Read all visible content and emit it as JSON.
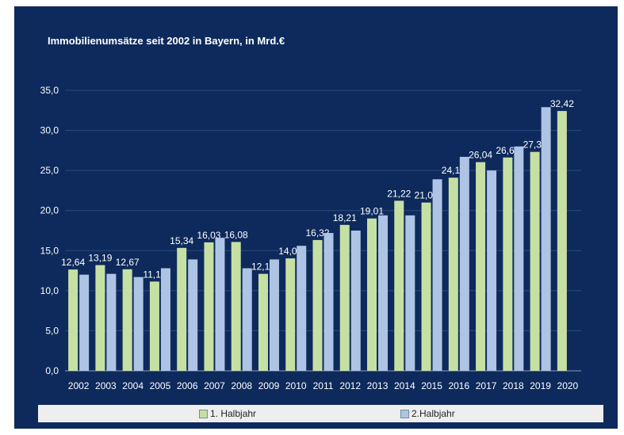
{
  "chart_data": {
    "type": "bar",
    "title": "Immobilienumsätze seit 2002 in Bayern, in Mrd.€",
    "categories": [
      "2002",
      "2003",
      "2004",
      "2005",
      "2006",
      "2007",
      "2008",
      "2009",
      "2010",
      "2011",
      "2012",
      "2013",
      "2014",
      "2015",
      "2016",
      "2017",
      "2018",
      "2019",
      "2020"
    ],
    "series": [
      {
        "name": "1. Halbjahr",
        "color": "#c6e0a4",
        "values": [
          12.64,
          13.19,
          12.67,
          11.14,
          15.34,
          16.03,
          16.08,
          12.1,
          14.03,
          16.32,
          18.21,
          19.01,
          21.22,
          21.0,
          24.1,
          26.04,
          26.62,
          27.32,
          32.42
        ],
        "labels": [
          "12,64",
          "13,19",
          "12,67",
          "11,14",
          "15,34",
          "16,03",
          "16,08",
          "12,10",
          "14,03",
          "16,32",
          "18,21",
          "19,01",
          "21,22",
          "21,00",
          "24,10",
          "26,04",
          "26,62",
          "27,32",
          "32,42"
        ]
      },
      {
        "name": "2.Halbjahr",
        "color": "#aec4e4",
        "values": [
          12.0,
          12.1,
          11.7,
          12.8,
          13.9,
          16.6,
          12.8,
          13.9,
          15.6,
          17.2,
          17.5,
          19.4,
          19.4,
          23.9,
          26.7,
          25.0,
          28.0,
          32.9,
          null
        ]
      }
    ],
    "ylim": [
      0,
      35
    ],
    "yticks": [
      "0,0",
      "5,0",
      "10,0",
      "15,0",
      "20,0",
      "25,0",
      "30,0",
      "35,0"
    ],
    "grid": true,
    "legend_position": "bottom"
  }
}
